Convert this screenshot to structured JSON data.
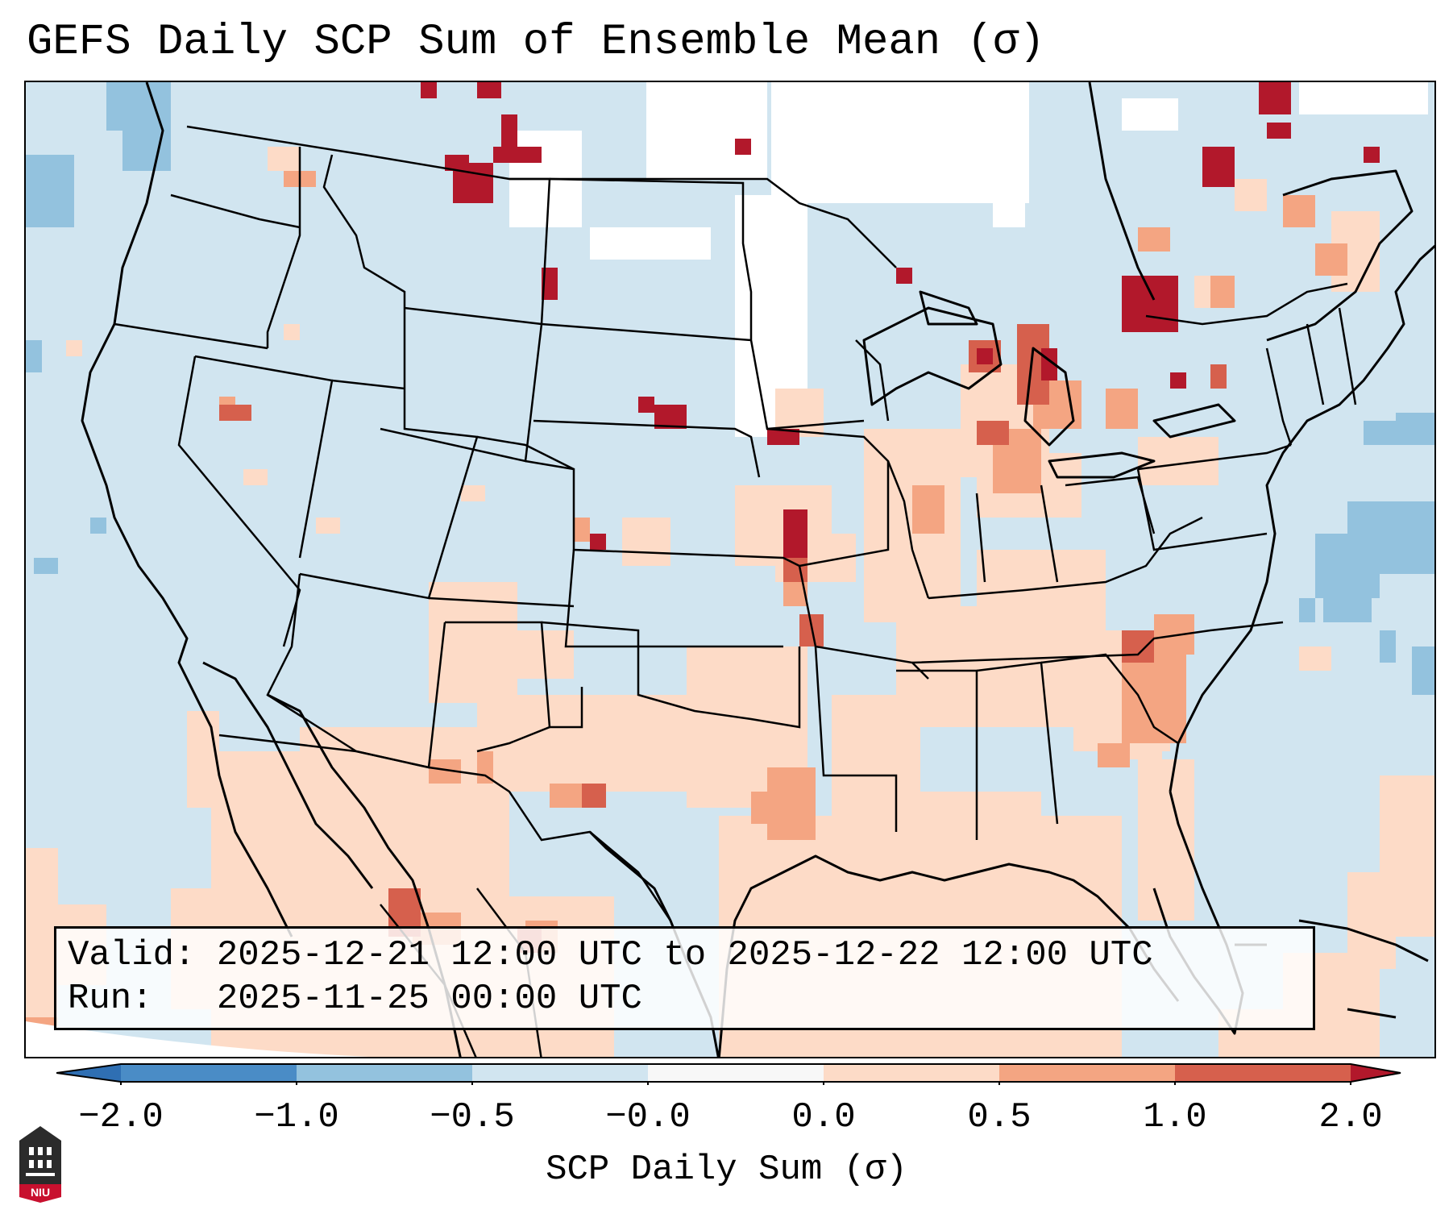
{
  "title": "GEFS Daily SCP Sum of Ensemble Mean (σ)",
  "info": {
    "valid_label": "Valid:",
    "valid_value": "2025-12-21 12:00 UTC to 2025-12-22 12:00 UTC",
    "run_label": "Run:",
    "run_value": "2025-11-25 00:00 UTC"
  },
  "colorbar": {
    "label": "SCP Daily Sum (σ)",
    "ticks": [
      "−2.0",
      "−1.0",
      "−0.5",
      "−0.0",
      "0.0",
      "0.5",
      "1.0",
      "2.0"
    ],
    "bins": [
      {
        "range": "< -2.0",
        "color": "#2f6fb3"
      },
      {
        "range": "-2.0 to -1.0",
        "color": "#4a8cc6"
      },
      {
        "range": "-1.0 to -0.5",
        "color": "#93c2de"
      },
      {
        "range": "-0.5 to -0.0",
        "color": "#d1e5f0"
      },
      {
        "range": "-0.0 to 0.0",
        "color": "#f7f7f7"
      },
      {
        "range": "0.0 to 0.5",
        "color": "#fddbc7"
      },
      {
        "range": "0.5 to 1.0",
        "color": "#f4a582"
      },
      {
        "range": "1.0 to 2.0",
        "color": "#d6604d"
      },
      {
        "range": "> 2.0",
        "color": "#b2182b"
      }
    ]
  },
  "logo": {
    "text": "NIU",
    "color": "#c8102e"
  },
  "colors": {
    "ocean_neutral": "#d1e5f0",
    "positive_light": "#fddbc7",
    "positive_mid": "#f4a582",
    "positive_strong": "#d6604d",
    "positive_extreme": "#b2182b",
    "negative_mid": "#93c2de",
    "zero": "#ffffff"
  }
}
